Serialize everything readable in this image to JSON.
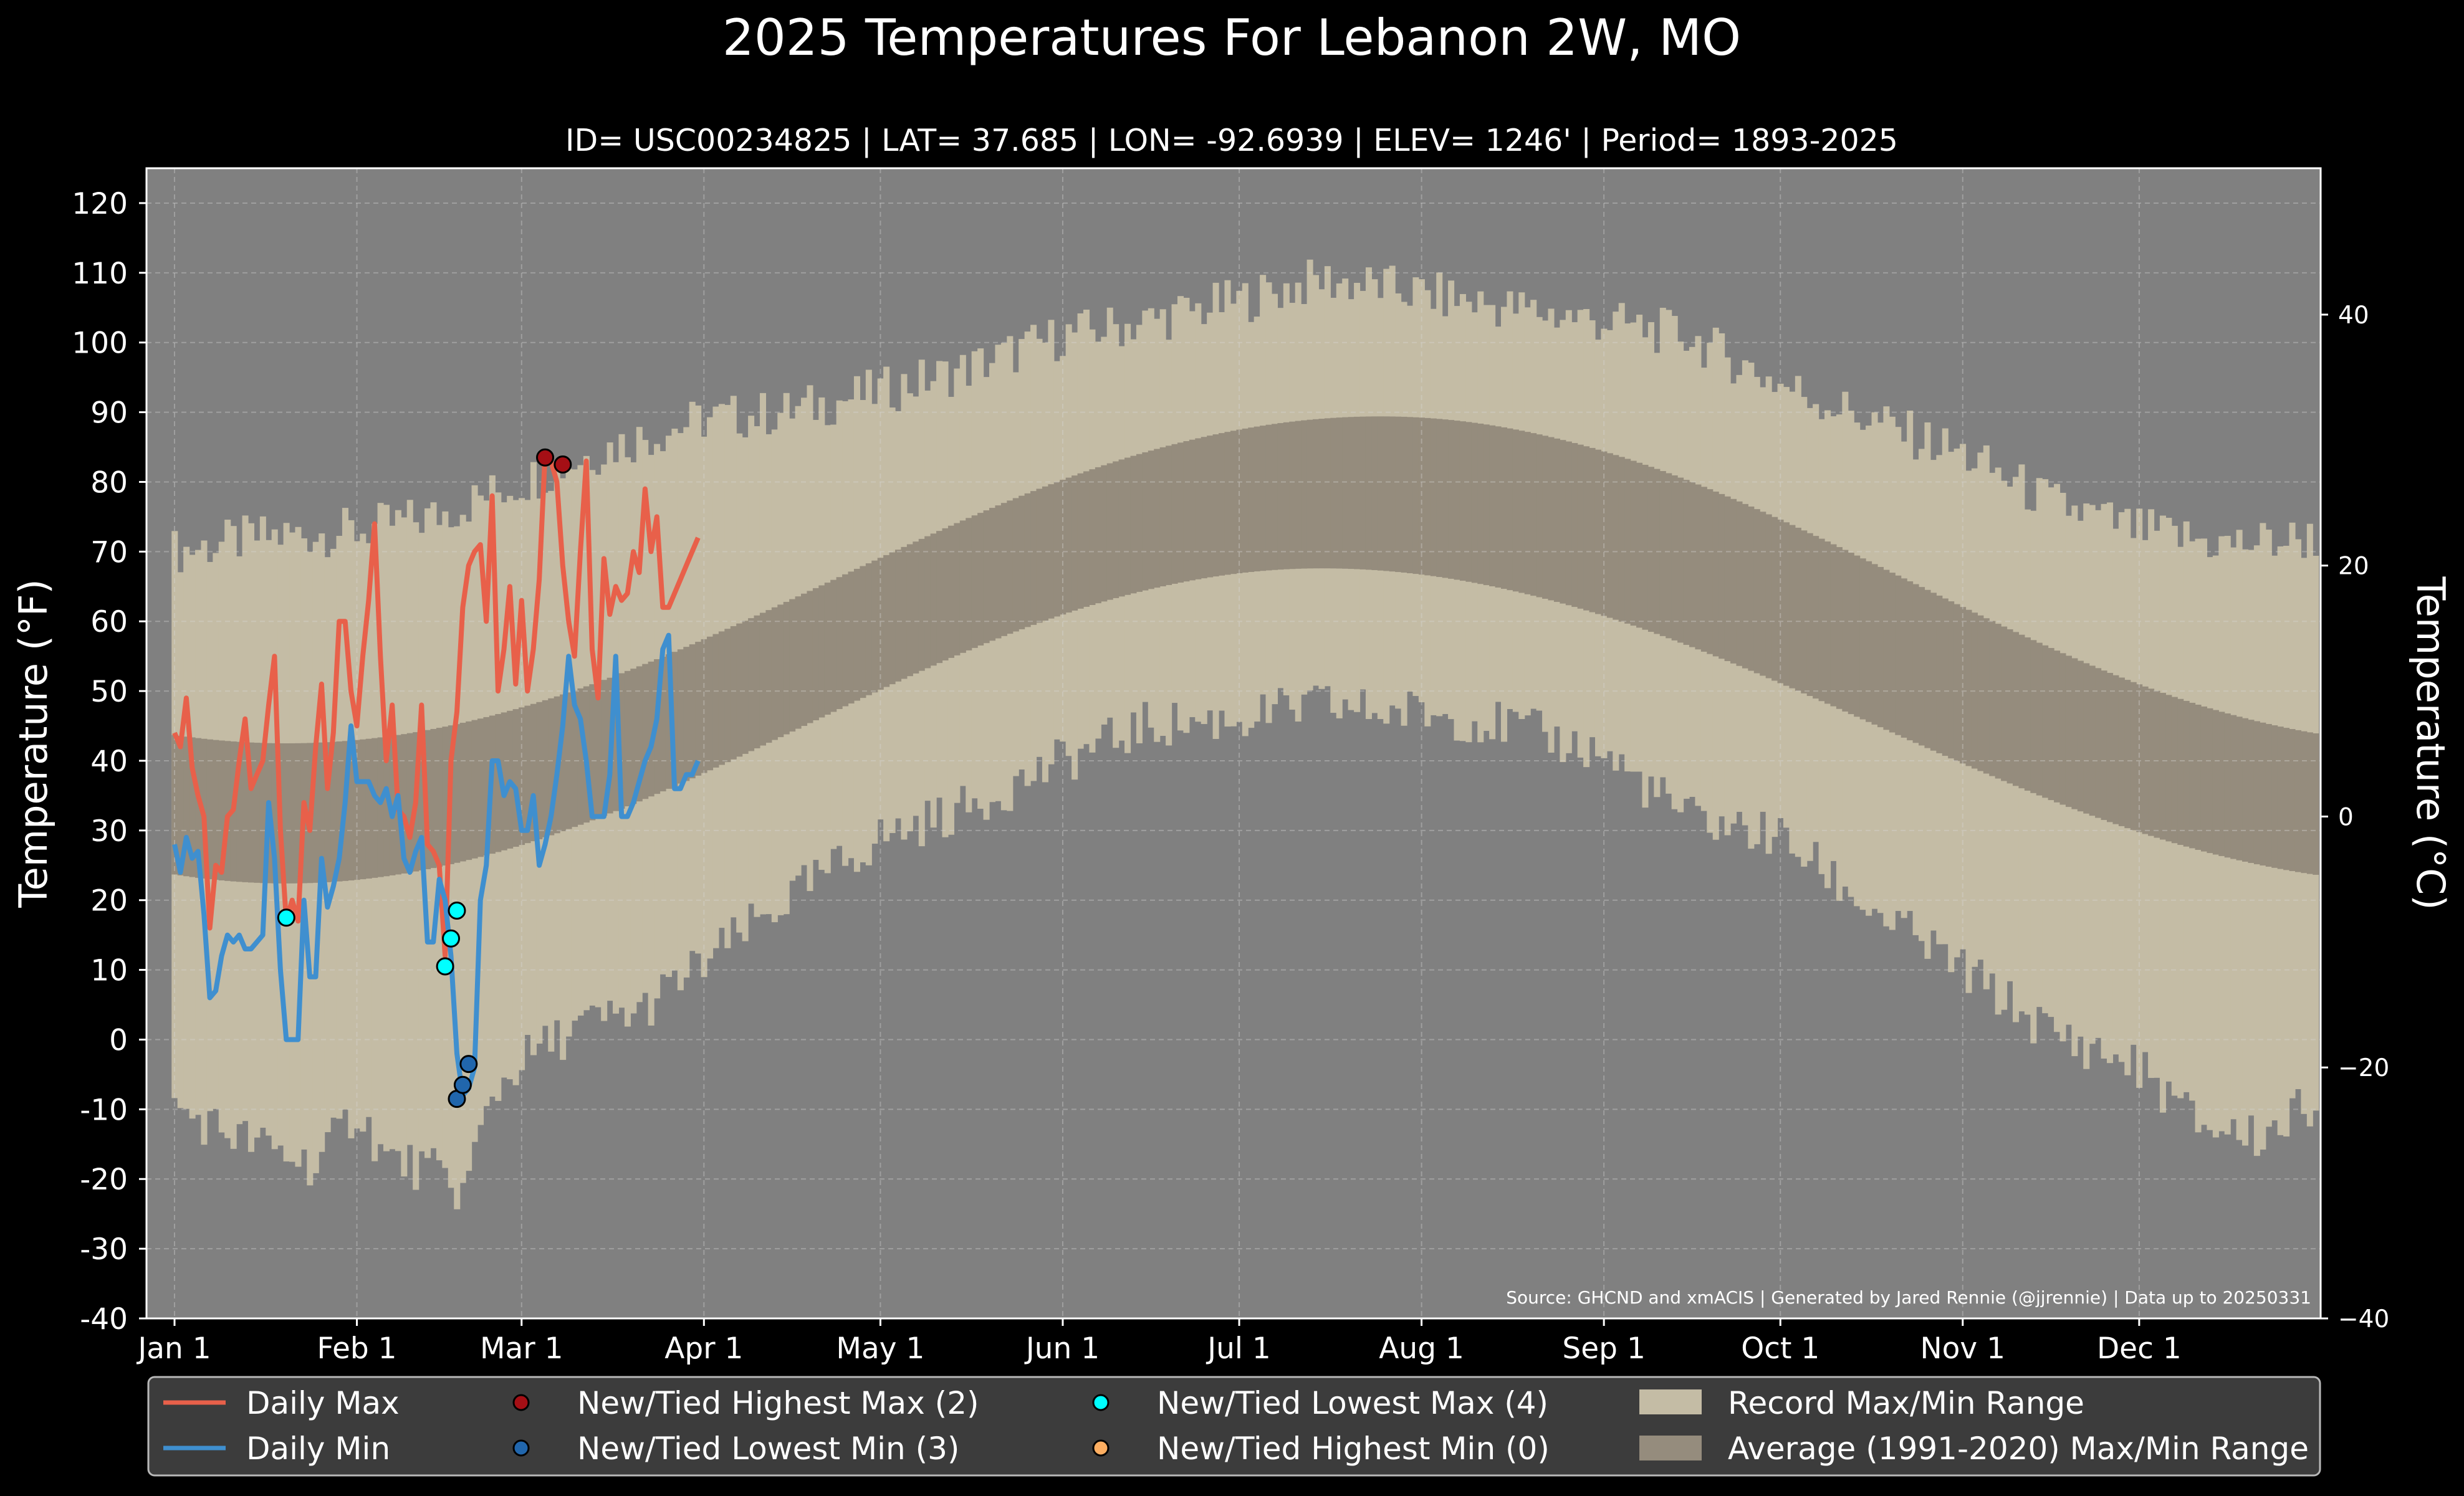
{
  "chart_data": {
    "type": "line",
    "title": "2025 Temperatures For Lebanon 2W, MO",
    "subtitle": "ID= USC00234825 | LAT= 37.685 | LON= -92.6939 | ELEV= 1246' | Period= 1893-2025",
    "ylabel": "Temperature (°F)",
    "ylabel_right": "Temperature (°C)",
    "ylim": [
      -40,
      125
    ],
    "ylim_right_c": [
      -40,
      51.67
    ],
    "xlim_days": [
      1,
      365
    ],
    "grid": true,
    "legend_position": "bottom",
    "yticks": [
      -40,
      -30,
      -20,
      -10,
      0,
      10,
      20,
      30,
      40,
      50,
      60,
      70,
      80,
      90,
      100,
      110,
      120
    ],
    "yticks_right": [
      -40,
      -20,
      0,
      20,
      40
    ],
    "xticks": [
      {
        "label": "Jan 1",
        "day": 1
      },
      {
        "label": "Feb 1",
        "day": 32
      },
      {
        "label": "Mar 1",
        "day": 60
      },
      {
        "label": "Apr 1",
        "day": 91
      },
      {
        "label": "May 1",
        "day": 121
      },
      {
        "label": "Jun 1",
        "day": 152
      },
      {
        "label": "Jul 1",
        "day": 182
      },
      {
        "label": "Aug 1",
        "day": 213
      },
      {
        "label": "Sep 1",
        "day": 244
      },
      {
        "label": "Oct 1",
        "day": 274
      },
      {
        "label": "Nov 1",
        "day": 305
      },
      {
        "label": "Dec 1",
        "day": 335
      }
    ],
    "record_max_anchors": [
      [
        1,
        70
      ],
      [
        15,
        72
      ],
      [
        32,
        73
      ],
      [
        45,
        75
      ],
      [
        60,
        80
      ],
      [
        75,
        85
      ],
      [
        91,
        89
      ],
      [
        105,
        90
      ],
      [
        121,
        93
      ],
      [
        135,
        96
      ],
      [
        152,
        101
      ],
      [
        166,
        103
      ],
      [
        182,
        106
      ],
      [
        196,
        109
      ],
      [
        206,
        108
      ],
      [
        213,
        107
      ],
      [
        228,
        105
      ],
      [
        244,
        103
      ],
      [
        258,
        101
      ],
      [
        274,
        94
      ],
      [
        289,
        89
      ],
      [
        305,
        84
      ],
      [
        320,
        77
      ],
      [
        335,
        73
      ],
      [
        350,
        71
      ],
      [
        365,
        72
      ]
    ],
    "record_min_anchors": [
      [
        1,
        -10
      ],
      [
        15,
        -15
      ],
      [
        25,
        -18
      ],
      [
        32,
        -10
      ],
      [
        37,
        -17
      ],
      [
        45,
        -19
      ],
      [
        50,
        -22
      ],
      [
        55,
        -8
      ],
      [
        60,
        -3
      ],
      [
        70,
        2
      ],
      [
        80,
        4
      ],
      [
        91,
        11
      ],
      [
        105,
        20
      ],
      [
        121,
        29
      ],
      [
        135,
        33
      ],
      [
        152,
        40
      ],
      [
        166,
        45
      ],
      [
        182,
        46
      ],
      [
        196,
        48
      ],
      [
        206,
        47
      ],
      [
        213,
        47
      ],
      [
        228,
        45
      ],
      [
        244,
        41
      ],
      [
        258,
        32
      ],
      [
        274,
        29
      ],
      [
        289,
        19
      ],
      [
        305,
        10
      ],
      [
        320,
        1
      ],
      [
        335,
        -4
      ],
      [
        345,
        -12
      ],
      [
        355,
        -14
      ],
      [
        365,
        -9
      ]
    ],
    "avg_max": {
      "min_value": 42.5,
      "min_day": 20,
      "max_value": 89.4,
      "max_day": 206
    },
    "avg_min": {
      "min_value": 22.4,
      "min_day": 20,
      "max_value": 67.6,
      "max_day": 196
    },
    "series": [
      {
        "name": "Daily Max",
        "color": "#e8604a",
        "start_day": 1,
        "values": [
          44,
          42,
          49,
          39,
          35,
          32,
          16,
          25,
          24,
          32,
          33,
          40,
          46,
          36,
          38,
          40,
          48,
          55,
          30,
          17,
          20,
          17,
          34,
          30,
          42,
          51,
          36,
          44,
          60,
          60,
          50,
          45,
          55,
          63,
          74,
          55,
          40,
          48,
          33,
          32,
          29,
          34,
          48,
          28,
          27,
          25,
          12,
          40,
          47,
          62,
          68,
          70,
          71,
          60,
          78,
          50,
          56,
          65,
          51,
          63,
          50,
          56,
          66,
          84,
          83,
          80,
          68,
          60,
          55,
          70,
          83,
          56,
          49,
          69,
          61,
          65,
          63,
          64,
          70,
          67,
          79,
          70,
          75,
          62,
          62,
          64,
          66,
          68,
          70,
          72
        ]
      },
      {
        "name": "Daily Min",
        "color": "#3f8fcf",
        "start_day": 1,
        "values": [
          28,
          24,
          29,
          26,
          27,
          18,
          6,
          7,
          12,
          15,
          14,
          15,
          13,
          13,
          14,
          15,
          34,
          26,
          10,
          0,
          0,
          0,
          20,
          9,
          9,
          26,
          19,
          22,
          26,
          34,
          45,
          37,
          37,
          37,
          35,
          34,
          36,
          32,
          35,
          26,
          24,
          27,
          29,
          14,
          14,
          23,
          20,
          12,
          -2,
          -8,
          -7,
          -4,
          20,
          25,
          40,
          40,
          35,
          37,
          36,
          30,
          30,
          35,
          25,
          28,
          32,
          38,
          45,
          55,
          48,
          46,
          40,
          32,
          32,
          32,
          38,
          55,
          32,
          32,
          34,
          37,
          40,
          42,
          46,
          56,
          58,
          36,
          36,
          38,
          38,
          40
        ]
      },
      {
        "name": "New/Tied Highest Max (2)",
        "type": "scatter",
        "color": "#a50f15",
        "points": [
          [
            64,
            83.5
          ],
          [
            67,
            82.5
          ]
        ]
      },
      {
        "name": "New/Tied Lowest Min (3)",
        "type": "scatter",
        "color": "#2166ac",
        "points": [
          [
            49,
            -8.5
          ],
          [
            50,
            -6.5
          ],
          [
            51,
            -3.5
          ]
        ]
      },
      {
        "name": "New/Tied Lowest Max (4)",
        "type": "scatter",
        "color": "#00ffff",
        "points": [
          [
            20,
            17.5
          ],
          [
            47,
            10.5
          ],
          [
            48,
            14.5
          ],
          [
            49,
            18.5
          ]
        ]
      },
      {
        "name": "New/Tied Highest Min (0)",
        "type": "scatter",
        "color": "#fdae61",
        "points": []
      },
      {
        "name": "Record Max/Min Range",
        "type": "area",
        "color": "#c4bca5"
      },
      {
        "name": "Average (1991-2020) Max/Min Range",
        "type": "area",
        "color": "#958c7d"
      }
    ],
    "source_note": "Source: GHCND and xmACIS | Generated by Jared Rennie (@jjrennie) | Data up to 20250331",
    "colors": {
      "background": "#000000",
      "plot_background": "#808080",
      "record_band": "#c4bca5",
      "average_band": "#958c7d",
      "daily_max": "#e8604a",
      "daily_min": "#3f8fcf"
    }
  }
}
